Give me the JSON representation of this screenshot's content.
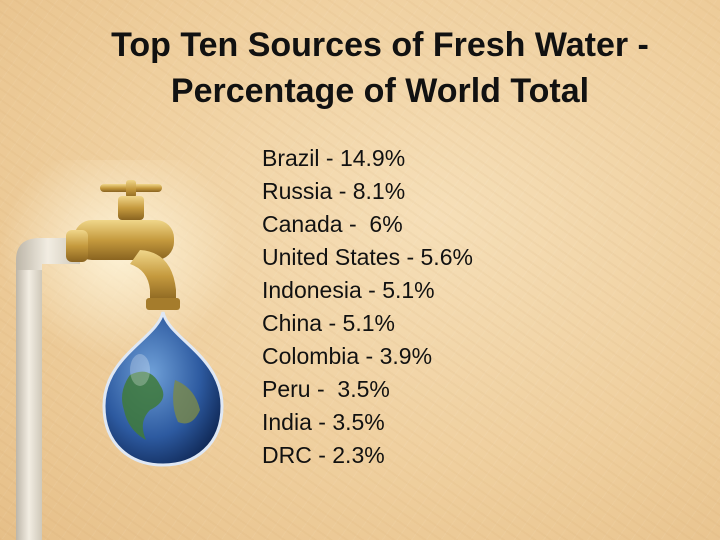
{
  "slide": {
    "title_line1": "Top Ten Sources of Fresh Water  -",
    "title_line2": "Percentage of World Total",
    "items": [
      "Brazil - 14.9%",
      "Russia - 8.1%",
      "Canada -  6%",
      "United States - 5.6%",
      "Indonesia - 5.1%",
      "China - 5.1%",
      "Colombia - 3.9%",
      "Peru -  3.5%",
      "India - 3.5%",
      "DRC - 2.3%"
    ]
  },
  "colors": {
    "background": "#efcf9e",
    "text": "#111111",
    "brass": "#c9a24a",
    "pipe": "#ddd6c8"
  },
  "icons": [
    "faucet-icon",
    "earth-drop-icon"
  ]
}
